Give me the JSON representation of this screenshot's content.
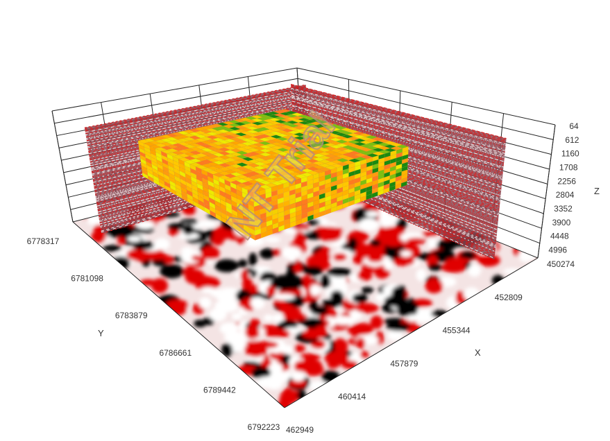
{
  "chart_data": {
    "type": "3d-volume",
    "title": "",
    "x_axis": {
      "title": "X",
      "ticks": [
        "450274",
        "452809",
        "455344",
        "457879",
        "460414",
        "462949"
      ],
      "range": [
        450274,
        462949
      ]
    },
    "y_axis": {
      "title": "Y",
      "ticks": [
        "6778317",
        "6781098",
        "6783879",
        "6786661",
        "6789442",
        "6792223"
      ],
      "range": [
        6778317,
        6792223
      ]
    },
    "z_axis": {
      "title": "Z",
      "ticks": [
        "64",
        "612",
        "1160",
        "1708",
        "2256",
        "2804",
        "3352",
        "3900",
        "4448",
        "4996"
      ],
      "range": [
        64,
        4996
      ],
      "reversed": true
    },
    "layers": [
      "seismic floor slice (red/white/black)",
      "two vertical seismic sections",
      "property volume (orange-yellow-green)"
    ],
    "grid": true,
    "watermark": "NT Trial",
    "colors": {
      "seismic_red": "#e00000",
      "seismic_black": "#000000",
      "volume_orange": "#ffa500",
      "volume_yellow": "#f0e000",
      "volume_green": "#1a8a10"
    }
  }
}
